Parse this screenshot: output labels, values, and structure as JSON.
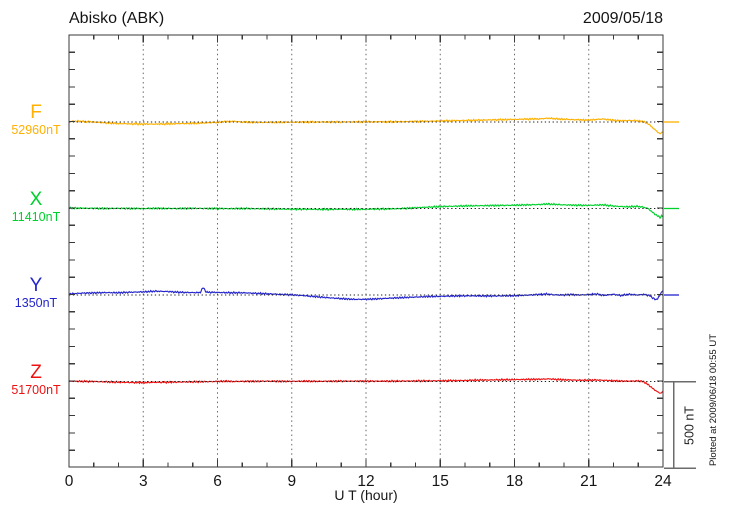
{
  "header": {
    "title": "Abisko (ABK)",
    "date": "2009/05/18"
  },
  "footer": {
    "plotted_note": "Plotted at 2009/06/18 00:55 UT"
  },
  "scale_bar": {
    "label": "500 nT",
    "nT": 500
  },
  "axis": {
    "frame_color": "#3a3a3a",
    "grid_color": "#6a6a6a",
    "baseline_color": "#1c1c1c"
  },
  "chart_data": {
    "type": "line",
    "title": "Abisko (ABK)",
    "date": "2009/05/18",
    "xlabel": "U T (hour)",
    "x_range": [
      0,
      24
    ],
    "x_ticks": [
      0,
      3,
      6,
      9,
      12,
      15,
      18,
      21,
      24
    ],
    "x_minor_tick_hours": 1,
    "y_minor_tick_nT": 100,
    "scale_bar_nT": 500,
    "deviation_unit": "nT relative to base_value_nT",
    "series": [
      {
        "name": "F",
        "label": "F",
        "base_label": "52960nT",
        "base_value_nT": 52960,
        "color": "#ffb000",
        "points": [
          [
            0,
            3
          ],
          [
            0.3,
            5
          ],
          [
            0.7,
            2
          ],
          [
            1,
            0
          ],
          [
            1.5,
            -5
          ],
          [
            2,
            -9
          ],
          [
            2.5,
            -11
          ],
          [
            3,
            -12
          ],
          [
            3.5,
            -12
          ],
          [
            4,
            -11
          ],
          [
            4.5,
            -9
          ],
          [
            5,
            -8
          ],
          [
            5.5,
            -5
          ],
          [
            6,
            -2
          ],
          [
            6.3,
            2
          ],
          [
            6.6,
            4
          ],
          [
            7,
            0
          ],
          [
            7.5,
            -2
          ],
          [
            8,
            -2
          ],
          [
            9,
            -1
          ],
          [
            10,
            0
          ],
          [
            11,
            0
          ],
          [
            12,
            1
          ],
          [
            13,
            1
          ],
          [
            14,
            3
          ],
          [
            15,
            6
          ],
          [
            16,
            9
          ],
          [
            17,
            12
          ],
          [
            18,
            15
          ],
          [
            18.5,
            17
          ],
          [
            19,
            18
          ],
          [
            19.4,
            22
          ],
          [
            19.7,
            18
          ],
          [
            20,
            16
          ],
          [
            20.5,
            13
          ],
          [
            21,
            11
          ],
          [
            21.3,
            15
          ],
          [
            21.6,
            17
          ],
          [
            22,
            10
          ],
          [
            22.3,
            7
          ],
          [
            22.6,
            9
          ],
          [
            23,
            7
          ],
          [
            23.2,
            2
          ],
          [
            23.4,
            -10
          ],
          [
            23.6,
            -35
          ],
          [
            23.8,
            -60
          ],
          [
            23.9,
            -69
          ],
          [
            24,
            -52
          ]
        ]
      },
      {
        "name": "X",
        "label": "X",
        "base_label": "11410nT",
        "base_value_nT": 11410,
        "color": "#00d02c",
        "points": [
          [
            0,
            2
          ],
          [
            0.5,
            2
          ],
          [
            1,
            1
          ],
          [
            1.5,
            0
          ],
          [
            2,
            1
          ],
          [
            2.5,
            0
          ],
          [
            3,
            0
          ],
          [
            3.5,
            1
          ],
          [
            4,
            0
          ],
          [
            4.5,
            0
          ],
          [
            5,
            1
          ],
          [
            5.5,
            0
          ],
          [
            6,
            0
          ],
          [
            6.5,
            -1
          ],
          [
            7,
            0
          ],
          [
            7.5,
            -1
          ],
          [
            8,
            -2
          ],
          [
            8.5,
            -3
          ],
          [
            9,
            -4
          ],
          [
            9.5,
            -4
          ],
          [
            10,
            -5
          ],
          [
            10.5,
            -5
          ],
          [
            11,
            -4
          ],
          [
            11.5,
            -5
          ],
          [
            12,
            -4
          ],
          [
            12.5,
            -3
          ],
          [
            13,
            -2
          ],
          [
            13.5,
            0
          ],
          [
            14,
            4
          ],
          [
            14.5,
            8
          ],
          [
            15,
            11
          ],
          [
            15.5,
            13
          ],
          [
            16,
            15
          ],
          [
            16.5,
            16
          ],
          [
            17,
            17
          ],
          [
            17.5,
            18
          ],
          [
            18,
            19
          ],
          [
            18.5,
            21
          ],
          [
            19,
            23
          ],
          [
            19.3,
            26
          ],
          [
            19.6,
            24
          ],
          [
            20,
            21
          ],
          [
            20.5,
            19
          ],
          [
            21,
            18
          ],
          [
            21.3,
            20
          ],
          [
            21.6,
            21
          ],
          [
            22,
            14
          ],
          [
            22.5,
            10
          ],
          [
            23,
            12
          ],
          [
            23.2,
            8
          ],
          [
            23.4,
            0
          ],
          [
            23.6,
            -25
          ],
          [
            23.8,
            -45
          ],
          [
            23.9,
            -52
          ],
          [
            23.95,
            -40
          ],
          [
            24,
            -48
          ]
        ]
      },
      {
        "name": "Y",
        "label": "Y",
        "base_label": "1350nT",
        "base_value_nT": 1350,
        "color": "#2424cc",
        "points": [
          [
            0,
            6
          ],
          [
            0.3,
            9
          ],
          [
            0.6,
            11
          ],
          [
            1,
            12
          ],
          [
            1.5,
            14
          ],
          [
            2,
            13
          ],
          [
            2.5,
            16
          ],
          [
            3,
            18
          ],
          [
            3.5,
            22
          ],
          [
            4,
            20
          ],
          [
            4.3,
            17
          ],
          [
            4.6,
            15
          ],
          [
            5,
            14
          ],
          [
            5.3,
            14
          ],
          [
            5.42,
            44
          ],
          [
            5.55,
            16
          ],
          [
            6,
            15
          ],
          [
            6.5,
            13
          ],
          [
            7,
            13
          ],
          [
            7.5,
            10
          ],
          [
            8,
            7
          ],
          [
            8.5,
            4
          ],
          [
            9,
            1
          ],
          [
            9.5,
            -4
          ],
          [
            10,
            -10
          ],
          [
            10.5,
            -16
          ],
          [
            11,
            -21
          ],
          [
            11.5,
            -25
          ],
          [
            12,
            -25
          ],
          [
            12.5,
            -22
          ],
          [
            13,
            -18
          ],
          [
            13.5,
            -15
          ],
          [
            14,
            -12
          ],
          [
            14.5,
            -9
          ],
          [
            15,
            -8
          ],
          [
            15.5,
            -6
          ],
          [
            16,
            -5
          ],
          [
            16.5,
            -5
          ],
          [
            17,
            -6
          ],
          [
            17.5,
            -5
          ],
          [
            18,
            -4
          ],
          [
            18.5,
            -1
          ],
          [
            19,
            3
          ],
          [
            19.3,
            6
          ],
          [
            19.6,
            1
          ],
          [
            20,
            0
          ],
          [
            20.3,
            3
          ],
          [
            20.6,
            0
          ],
          [
            21,
            2
          ],
          [
            21.3,
            6
          ],
          [
            21.6,
            -2
          ],
          [
            22,
            4
          ],
          [
            22.3,
            -3
          ],
          [
            22.6,
            4
          ],
          [
            23,
            0
          ],
          [
            23.2,
            4
          ],
          [
            23.45,
            -3
          ],
          [
            23.6,
            -18
          ],
          [
            23.72,
            -29
          ],
          [
            23.85,
            -8
          ],
          [
            23.95,
            18
          ],
          [
            24,
            28
          ]
        ]
      },
      {
        "name": "Z",
        "label": "Z",
        "base_label": "51700nT",
        "base_value_nT": 51700,
        "color": "#ee1111",
        "points": [
          [
            0,
            2
          ],
          [
            0.5,
            1
          ],
          [
            1,
            0
          ],
          [
            1.5,
            -2
          ],
          [
            2,
            -4
          ],
          [
            2.5,
            -6
          ],
          [
            3,
            -6
          ],
          [
            3.5,
            -5
          ],
          [
            4,
            -4
          ],
          [
            4.5,
            -3
          ],
          [
            5,
            -2
          ],
          [
            5.5,
            -1
          ],
          [
            6,
            0
          ],
          [
            6.3,
            2
          ],
          [
            6.6,
            0
          ],
          [
            7,
            1
          ],
          [
            7.5,
            1
          ],
          [
            8,
            2
          ],
          [
            8.5,
            1
          ],
          [
            9,
            1
          ],
          [
            9.5,
            2
          ],
          [
            10,
            1
          ],
          [
            11,
            2
          ],
          [
            12,
            2
          ],
          [
            13,
            2
          ],
          [
            14,
            3
          ],
          [
            15,
            4
          ],
          [
            16,
            6
          ],
          [
            16.5,
            8
          ],
          [
            17,
            9
          ],
          [
            17.5,
            10
          ],
          [
            18,
            11
          ],
          [
            18.5,
            12
          ],
          [
            19,
            13
          ],
          [
            19.4,
            15
          ],
          [
            19.7,
            12
          ],
          [
            20,
            10
          ],
          [
            20.5,
            8
          ],
          [
            21,
            7
          ],
          [
            21.3,
            9
          ],
          [
            21.6,
            7
          ],
          [
            22,
            4
          ],
          [
            22.5,
            2
          ],
          [
            23,
            3
          ],
          [
            23.2,
            0
          ],
          [
            23.4,
            -18
          ],
          [
            23.6,
            -42
          ],
          [
            23.8,
            -62
          ],
          [
            23.9,
            -68
          ],
          [
            24,
            -58
          ]
        ]
      }
    ]
  }
}
